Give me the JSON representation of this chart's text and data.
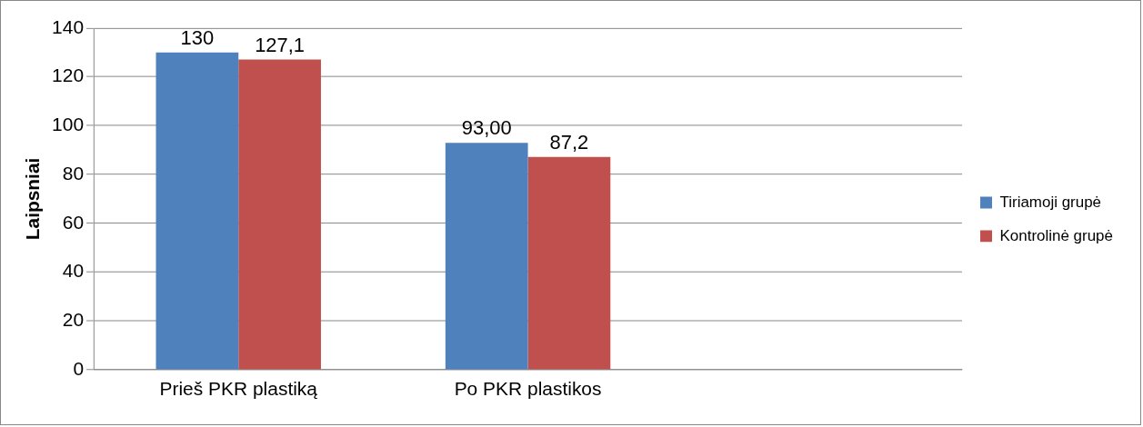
{
  "chart_data": {
    "type": "bar",
    "ylabel": "Laipsniai",
    "categories": [
      "Prieš PKR plastiką",
      "Po PKR plastikos",
      null
    ],
    "series": [
      {
        "name": "Tiriamoji grupė",
        "color": "#4f81bd",
        "values": [
          130,
          93,
          null
        ],
        "value_labels": [
          "130",
          "93,00",
          null
        ]
      },
      {
        "name": "Kontrolinė grupė",
        "color": "#c0504d",
        "values": [
          127.1,
          87.2,
          null
        ],
        "value_labels": [
          "127,1",
          "87,2",
          null
        ]
      }
    ],
    "ylim": [
      0,
      140
    ],
    "yticks": [
      0,
      20,
      40,
      60,
      80,
      100,
      120,
      140
    ],
    "grid": "y",
    "legend": "right"
  }
}
